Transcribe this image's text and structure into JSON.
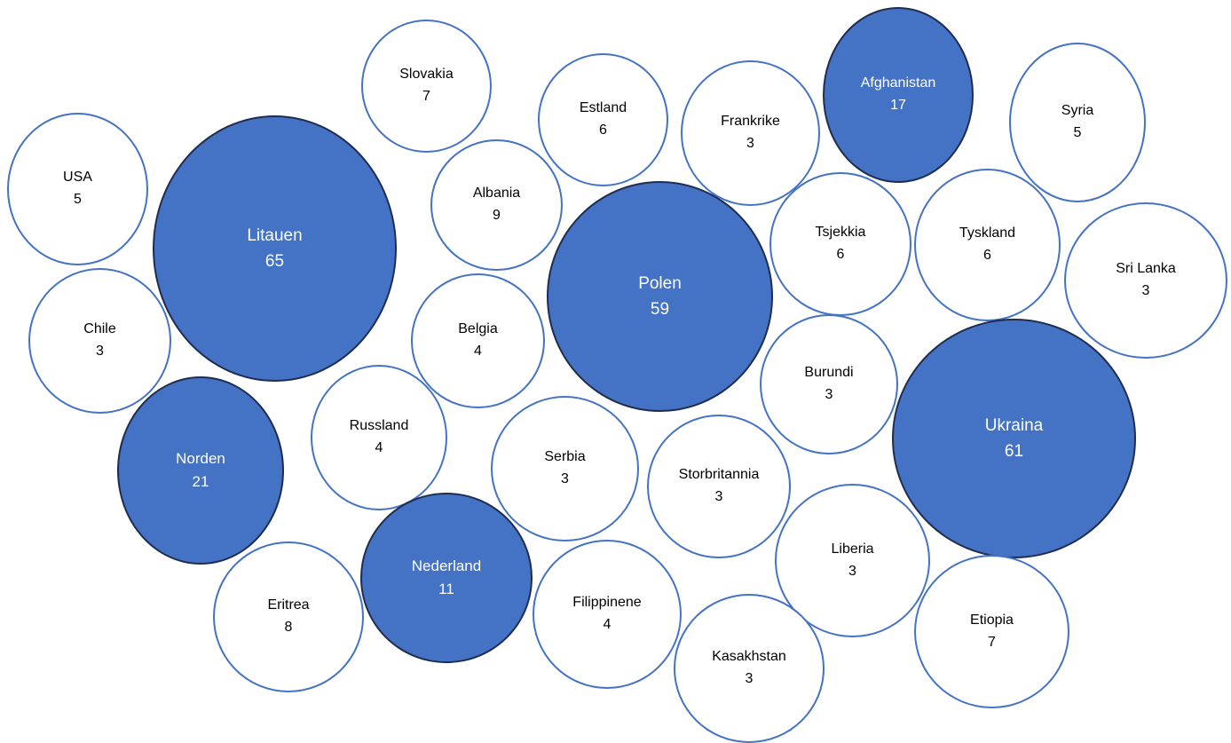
{
  "colors": {
    "highlight_fill": "#4472C4",
    "highlight_border": "#1F2D4F",
    "outline_border": "#4472C4",
    "outline_fill": "#ffffff",
    "dark_text": "#000000",
    "light_text": "#ffffff"
  },
  "bubbles": [
    {
      "name": "Slovakia",
      "value": "7",
      "highlight": false
    },
    {
      "name": "Estland",
      "value": "6",
      "highlight": false
    },
    {
      "name": "Frankrike",
      "value": "3",
      "highlight": false
    },
    {
      "name": "Afghanistan",
      "value": "17",
      "highlight": true
    },
    {
      "name": "Syria",
      "value": "5",
      "highlight": false
    },
    {
      "name": "USA",
      "value": "5",
      "highlight": false
    },
    {
      "name": "Litauen",
      "value": "65",
      "highlight": true
    },
    {
      "name": "Albania",
      "value": "9",
      "highlight": false
    },
    {
      "name": "Polen",
      "value": "59",
      "highlight": true
    },
    {
      "name": "Tsjekkia",
      "value": "6",
      "highlight": false
    },
    {
      "name": "Tyskland",
      "value": "6",
      "highlight": false
    },
    {
      "name": "Sri Lanka",
      "value": "3",
      "highlight": false
    },
    {
      "name": "Chile",
      "value": "3",
      "highlight": false
    },
    {
      "name": "Belgia",
      "value": "4",
      "highlight": false
    },
    {
      "name": "Burundi",
      "value": "3",
      "highlight": false
    },
    {
      "name": "Ukraina",
      "value": "61",
      "highlight": true
    },
    {
      "name": "Norden",
      "value": "21",
      "highlight": true
    },
    {
      "name": "Russland",
      "value": "4",
      "highlight": false
    },
    {
      "name": "Serbia",
      "value": "3",
      "highlight": false
    },
    {
      "name": "Storbritannia",
      "value": "3",
      "highlight": false
    },
    {
      "name": "Liberia",
      "value": "3",
      "highlight": false
    },
    {
      "name": "Nederland",
      "value": "11",
      "highlight": true
    },
    {
      "name": "Eritrea",
      "value": "8",
      "highlight": false
    },
    {
      "name": "Filippinene",
      "value": "4",
      "highlight": false
    },
    {
      "name": "Kasakhstan",
      "value": "3",
      "highlight": false
    },
    {
      "name": "Etiopia",
      "value": "7",
      "highlight": false
    }
  ]
}
